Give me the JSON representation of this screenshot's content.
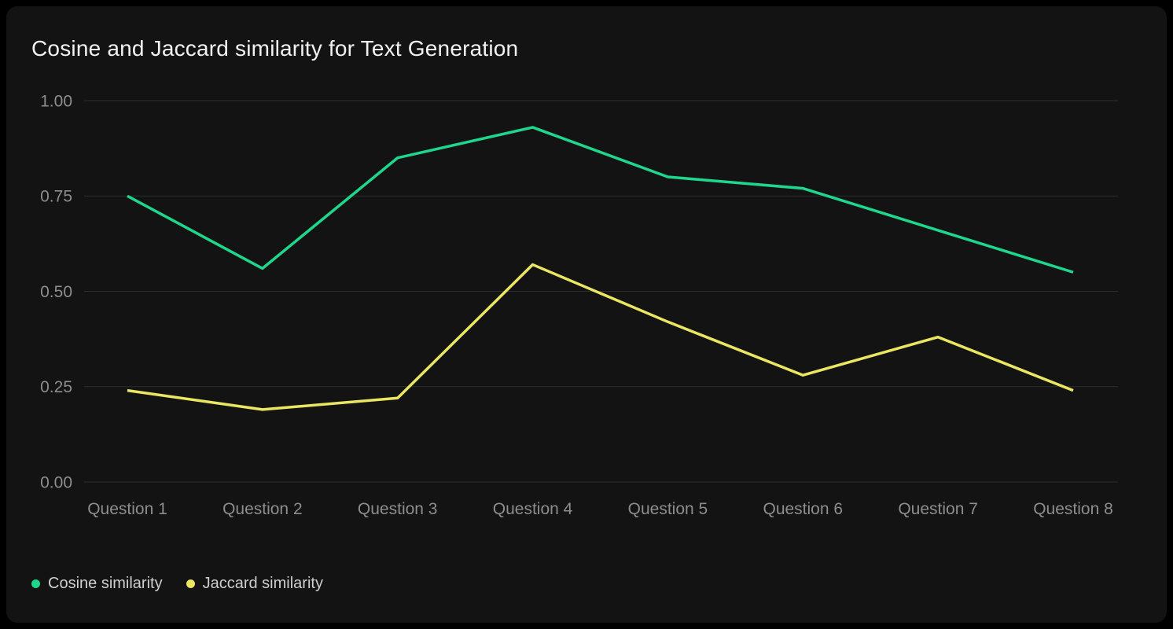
{
  "card": {
    "title": "Cosine and Jaccard similarity for Text Generation"
  },
  "chart_data": {
    "type": "line",
    "title": "Cosine and Jaccard similarity for Text Generation",
    "categories": [
      "Question 1",
      "Question 2",
      "Question 3",
      "Question 4",
      "Question 5",
      "Question 6",
      "Question 7",
      "Question 8"
    ],
    "series": [
      {
        "name": "Cosine similarity",
        "color": "#1ed78c",
        "values": [
          0.75,
          0.56,
          0.85,
          0.93,
          0.8,
          0.77,
          0.66,
          0.55
        ]
      },
      {
        "name": "Jaccard similarity",
        "color": "#eae661",
        "values": [
          0.24,
          0.19,
          0.22,
          0.57,
          0.42,
          0.28,
          0.38,
          0.24
        ]
      }
    ],
    "xlabel": "",
    "ylabel": "",
    "ylim": [
      0,
      1
    ],
    "yticks": [
      0,
      0.25,
      0.5,
      0.75,
      1
    ],
    "ytick_labels": [
      "0.00",
      "0.25",
      "0.50",
      "0.75",
      "1.00"
    ],
    "grid": "horizontal",
    "legend_position": "bottom-left",
    "colors": {
      "card_background": "#131313",
      "page_background": "#000000",
      "gridline": "#2d2d2d",
      "title_text": "#f2f2f2",
      "tick_text": "#8d8d8d",
      "legend_text": "#cfcfcf"
    }
  }
}
